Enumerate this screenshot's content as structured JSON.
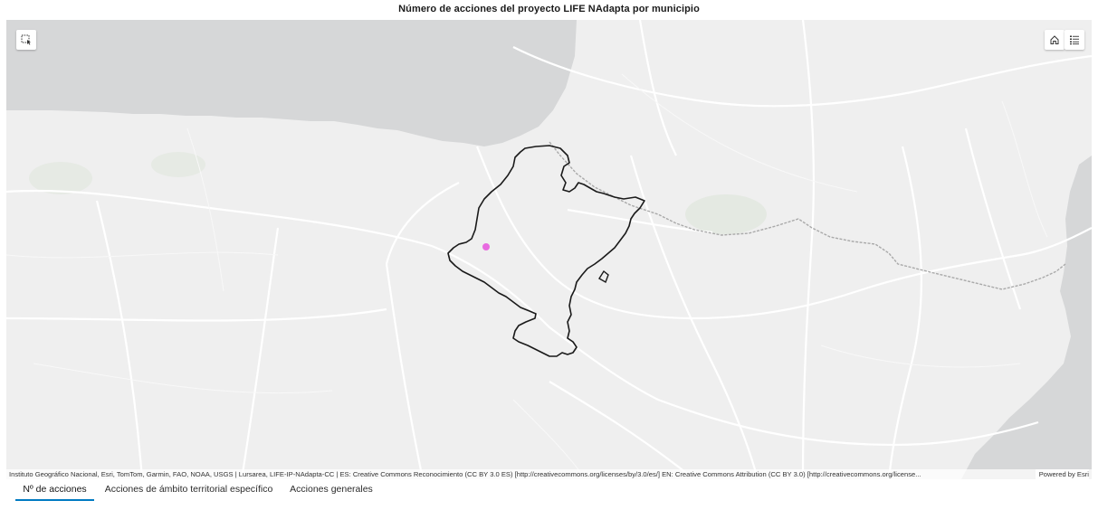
{
  "title": "Número de acciones del proyecto LIFE NAdapta por municipio",
  "map": {
    "buttons": {
      "select_icon": "select-area-icon",
      "home_icon": "home-icon",
      "legend_icon": "legend-list-icon"
    },
    "colors": {
      "land": "#efefef",
      "sea": "#d6d7d8",
      "roads": "#ffffff",
      "border": "#a9a9a9",
      "navarra_outline": "#1a1a1a",
      "marker": "#e86ae0"
    },
    "attribution": "Instituto Geográfico Nacional, Esri, TomTom, Garmin, FAO, NOAA, USGS | Lursarea, LIFE-IP-NAdapta-CC | ES: Creative Commons Reconocimiento (CC BY 3.0 ES) [http://creativecommons.org/licenses/by/3.0/es/] EN: Creative Commons Attribution (CC BY 3.0) [http://creativecommons.org/license...",
    "powered_by": "Powered by Esri"
  },
  "tabs": [
    {
      "label": "Nº de acciones",
      "active": true
    },
    {
      "label": "Acciones de ámbito territorial específico",
      "active": false
    },
    {
      "label": "Acciones generales",
      "active": false
    }
  ]
}
